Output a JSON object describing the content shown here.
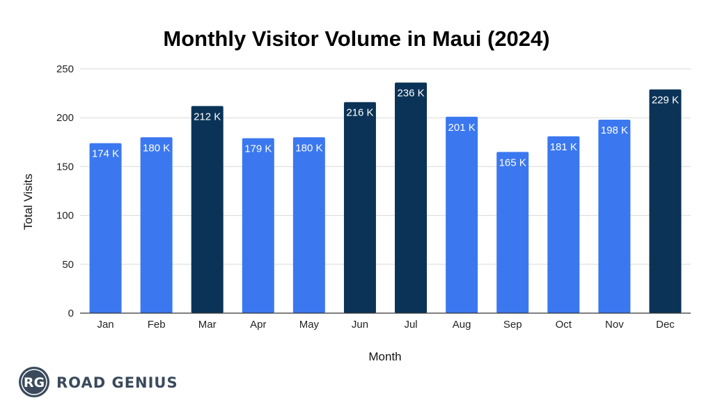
{
  "chart_data": {
    "type": "bar",
    "title": "Monthly Visitor Volume in Maui (2024)",
    "xlabel": "Month",
    "ylabel": "Total Visits",
    "ylim": [
      0,
      250
    ],
    "yticks": [
      0,
      50,
      100,
      150,
      200,
      250
    ],
    "ytick_labels": [
      "0",
      "50",
      "100",
      "150",
      "200",
      "250"
    ],
    "grid": true,
    "categories": [
      "Jan",
      "Feb",
      "Mar",
      "Apr",
      "May",
      "Jun",
      "Jul",
      "Aug",
      "Sep",
      "Oct",
      "Nov",
      "Dec"
    ],
    "values": [
      174,
      180,
      212,
      179,
      180,
      216,
      236,
      201,
      165,
      181,
      198,
      229
    ],
    "data_labels": [
      "174 K",
      "180 K",
      "212 K",
      "179 K",
      "180 K",
      "216 K",
      "236 K",
      "201 K",
      "165 K",
      "181 K",
      "198 K",
      "229 K"
    ],
    "highlighted": [
      false,
      false,
      true,
      false,
      false,
      true,
      true,
      false,
      false,
      false,
      false,
      true
    ],
    "colors": {
      "normal": "#3b78f0",
      "highlight": "#0b3357"
    }
  },
  "branding": {
    "logo_monogram": "RG",
    "logo_text": "ROAD GENIUS",
    "logo_color": "#3a4a5c"
  }
}
